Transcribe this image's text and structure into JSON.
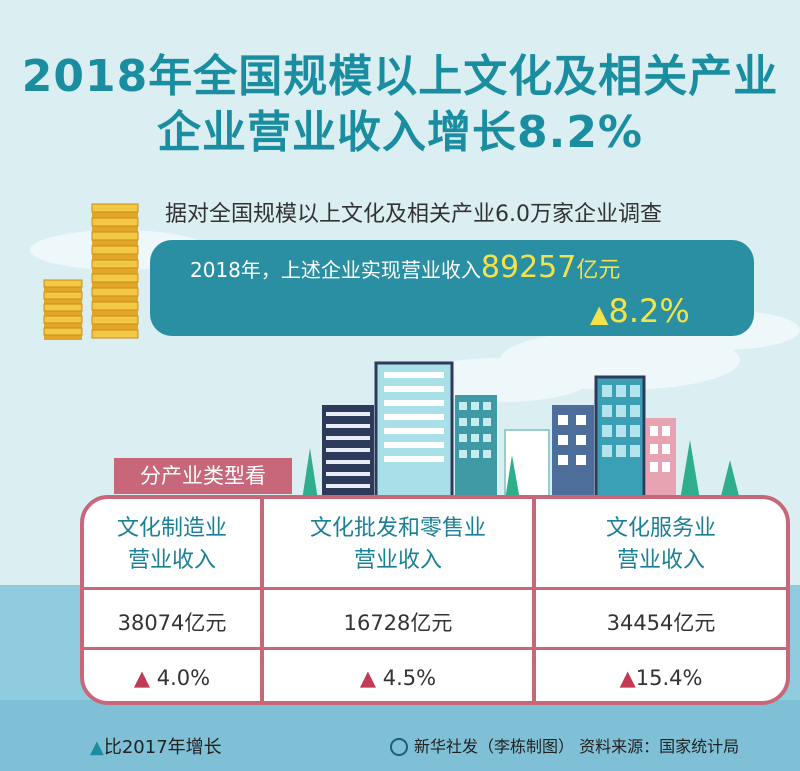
{
  "title_line1": "2018年全国规模以上文化及相关产业",
  "title_line2": "企业营业收入增长8.2%",
  "survey_text": "据对全国规模以上文化及相关产业6.0万家企业调查",
  "revenue": {
    "prefix": "2018年，上述企业实现营业收入",
    "value": "89257",
    "unit": "亿元",
    "growth": "8.2%"
  },
  "breakdown_header": "分产业类型看",
  "categories": [
    {
      "name_line1": "文化制造业",
      "name_line2": "营业收入",
      "value": "38074亿元",
      "growth": "4.0%"
    },
    {
      "name_line1": "文化批发和零售业",
      "name_line2": "营业收入",
      "value": "16728亿元",
      "growth": "4.5%"
    },
    {
      "name_line1": "文化服务业",
      "name_line2": "营业收入",
      "value": "34454亿元",
      "growth": "15.4%"
    }
  ],
  "legend": "比2017年增长",
  "credit": "新华社发（李栋制图）  资料来源：国家统计局",
  "colors": {
    "teal": "#2a8fa3",
    "title": "#1a8ea0",
    "pink": "#c9677a",
    "yellow": "#f4e24a",
    "arrow": "#c23b55"
  },
  "icons": {
    "up_triangle": "▲",
    "logo": "xinhua-logo-icon"
  }
}
